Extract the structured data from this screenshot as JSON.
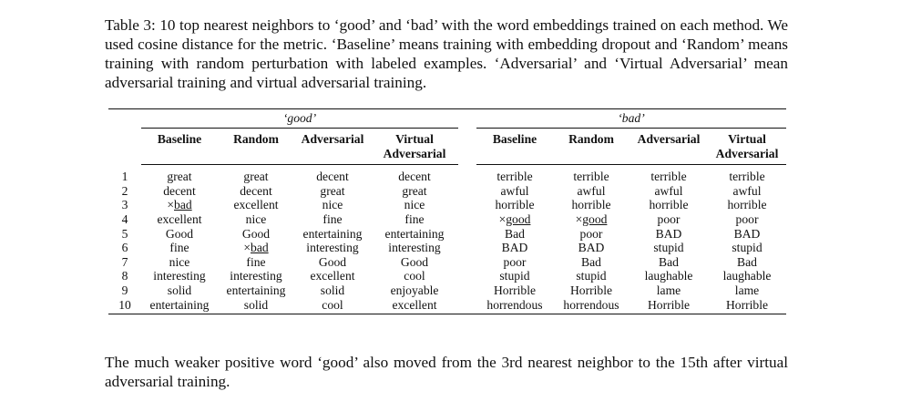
{
  "caption": {
    "label": "Table 3:",
    "text": "10 top nearest neighbors to ‘good’ and ‘bad’ with the word embeddings trained on each method. We used cosine distance for the metric. ‘Baseline’ means training with embedding dropout and ‘Random’ means training with random perturbation with labeled examples. ‘Adversarial’ and ‘Virtual Adversarial’ mean adversarial training and virtual adversarial training."
  },
  "table": {
    "groups": [
      "‘good’",
      "‘bad’"
    ],
    "columns": [
      "Baseline",
      "Random",
      "Adversarial",
      "Virtual",
      "Adversarial"
    ],
    "col_virtual_line1": "Virtual",
    "col_virtual_line2": "Adversarial",
    "rows": [
      {
        "rank": "1",
        "good": [
          "great",
          "great",
          "decent",
          "decent"
        ],
        "bad": [
          "terrible",
          "terrible",
          "terrible",
          "terrible"
        ]
      },
      {
        "rank": "2",
        "good": [
          "decent",
          "decent",
          "great",
          "great"
        ],
        "bad": [
          "awful",
          "awful",
          "awful",
          "awful"
        ]
      },
      {
        "rank": "3",
        "good": [
          "×bad",
          "excellent",
          "nice",
          "nice"
        ],
        "bad": [
          "horrible",
          "horrible",
          "horrible",
          "horrible"
        ]
      },
      {
        "rank": "4",
        "good": [
          "excellent",
          "nice",
          "fine",
          "fine"
        ],
        "bad": [
          "×good",
          "×good",
          "poor",
          "poor"
        ]
      },
      {
        "rank": "5",
        "good": [
          "Good",
          "Good",
          "entertaining",
          "entertaining"
        ],
        "bad": [
          "Bad",
          "poor",
          "BAD",
          "BAD"
        ]
      },
      {
        "rank": "6",
        "good": [
          "fine",
          "×bad",
          "interesting",
          "interesting"
        ],
        "bad": [
          "BAD",
          "BAD",
          "stupid",
          "stupid"
        ]
      },
      {
        "rank": "7",
        "good": [
          "nice",
          "fine",
          "Good",
          "Good"
        ],
        "bad": [
          "poor",
          "Bad",
          "Bad",
          "Bad"
        ]
      },
      {
        "rank": "8",
        "good": [
          "interesting",
          "interesting",
          "excellent",
          "cool"
        ],
        "bad": [
          "stupid",
          "stupid",
          "laughable",
          "laughable"
        ]
      },
      {
        "rank": "9",
        "good": [
          "solid",
          "entertaining",
          "solid",
          "enjoyable"
        ],
        "bad": [
          "Horrible",
          "Horrible",
          "lame",
          "lame"
        ]
      },
      {
        "rank": "10",
        "good": [
          "entertaining",
          "solid",
          "cool",
          "excellent"
        ],
        "bad": [
          "horrendous",
          "horrendous",
          "Horrible",
          "Horrible"
        ]
      }
    ]
  },
  "body_text": "The much weaker positive word ‘good’ also moved from the 3rd nearest neighbor to the 15th after virtual adversarial training."
}
